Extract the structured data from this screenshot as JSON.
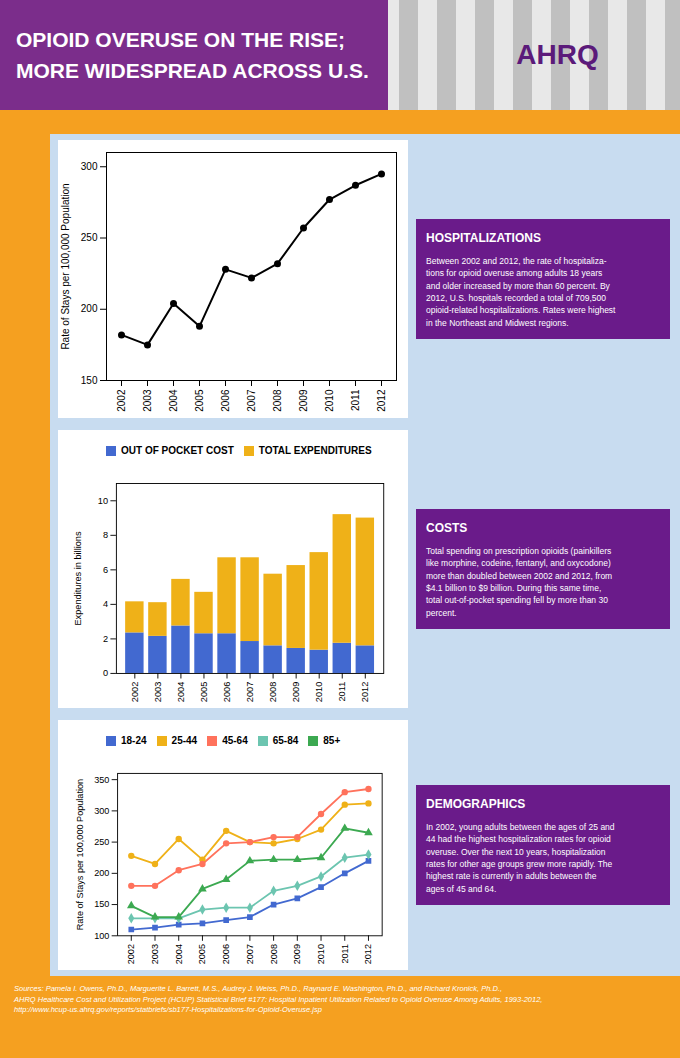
{
  "title": "OPIOID OVERUSE ON THE RISE;\nMORE WIDESPREAD ACROSS U.S.",
  "annotations": [
    "AHRQ",
    "Sources: Pamela I. Owens, Ph.D., Marguerite L. Barrett, M.S., Audrey J. Weiss, Ph.D., Raynard E. Washington, Ph.D., and Richard Kronick, Ph.D.,\nAHRQ Healthcare Cost and Utilization Project (HCUP) Statistical Brief #177: Hospital Inpatient Utilization Related to Opioid Overuse Among Adults, 1993-2012,\nhttp://www.hcup-us.ahrq.gov/reports/statbriefs/sb177-Hospitalizations-for-Opioid-Overuse.jsp"
  ],
  "chart_data": [
    {
      "type": "line",
      "title": "HOSPITALIZATIONS",
      "annotations": [
        "Between 2002 and 2012, the rate of hospitaliza-\ntions for opioid overuse among adults 18 years\nand older increased by more than 60 percent. By\n2012, U.S. hospitals recorded a total of 709,500\nopioid-related hospitalizations. Rates were highest\nin the Northeast and Midwest regions."
      ],
      "ylabel": "Rate of Stays per 100,000 Population",
      "categories": [
        "2002",
        "2003",
        "2004",
        "2005",
        "2006",
        "2007",
        "2008",
        "2009",
        "2010",
        "2011",
        "2012"
      ],
      "values": [
        182,
        175,
        204,
        188,
        228,
        222,
        232,
        257,
        277,
        287,
        295
      ],
      "marker": "circle",
      "ylim": [
        150,
        310
      ],
      "yticks": [
        150,
        200,
        250,
        300
      ]
    },
    {
      "type": "bar",
      "title": "COSTS",
      "annotations": [
        "Total spending on prescription opioids (painkillers\nlike morphine, codeine, fentanyl, and oxycodone)\nmore than doubled between 2002 and 2012, from\n$4.1 billion to $9 billion. During this same time,\ntotal out-of-pocket spending fell by more than 30\npercent."
      ],
      "ylabel": "Expenditures in billions",
      "categories": [
        "2002",
        "2003",
        "2004",
        "2005",
        "2006",
        "2007",
        "2008",
        "2009",
        "2010",
        "2011",
        "2012"
      ],
      "series": [
        {
          "name": "OUT OF POCKET COST",
          "values": [
            2.35,
            2.15,
            2.75,
            2.3,
            2.3,
            1.85,
            1.6,
            1.45,
            1.35,
            1.75,
            1.6
          ]
        },
        {
          "name": "TOTAL EXPENDITURES",
          "values": [
            1.8,
            1.95,
            2.7,
            2.4,
            4.4,
            4.85,
            4.15,
            4.8,
            5.65,
            7.45,
            7.4
          ]
        }
      ],
      "stacked": true,
      "legend": "upper left",
      "ylim": [
        0,
        11
      ],
      "yticks": [
        0,
        2,
        4,
        6,
        8,
        10
      ]
    },
    {
      "type": "line",
      "title": "DEMOGRAPHICS",
      "annotations": [
        "In 2002, young adults between the ages of 25 and\n44 had the highest hospitalization rates for opioid\noveruse. Over the next 10 years, hospitalization\nrates for other age groups grew more rapidly. The\nhighest rate is currently in adults between the\nages of 45 and 64."
      ],
      "ylabel": "Rate of Stays per 100,000 Population",
      "categories": [
        "2002",
        "2003",
        "2004",
        "2005",
        "2006",
        "2007",
        "2008",
        "2009",
        "2010",
        "2011",
        "2012"
      ],
      "series": [
        {
          "name": "18-24",
          "marker": "square",
          "values": [
            110,
            113,
            118,
            120,
            125,
            130,
            150,
            160,
            178,
            200,
            220
          ]
        },
        {
          "name": "25-44",
          "marker": "circle",
          "values": [
            228,
            215,
            255,
            222,
            268,
            250,
            248,
            255,
            270,
            310,
            312
          ]
        },
        {
          "name": "45-64",
          "marker": "circle",
          "values": [
            180,
            180,
            205,
            215,
            248,
            250,
            258,
            258,
            295,
            330,
            335
          ]
        },
        {
          "name": "65-84",
          "marker": "diamond",
          "values": [
            128,
            128,
            128,
            142,
            145,
            145,
            172,
            180,
            195,
            225,
            230
          ]
        },
        {
          "name": "85+",
          "marker": "triangle",
          "values": [
            148,
            130,
            130,
            175,
            190,
            220,
            222,
            222,
            225,
            272,
            265
          ]
        }
      ],
      "legend": "upper left",
      "ylim": [
        100,
        360
      ],
      "yticks": [
        100,
        150,
        200,
        250,
        300,
        350
      ]
    }
  ]
}
